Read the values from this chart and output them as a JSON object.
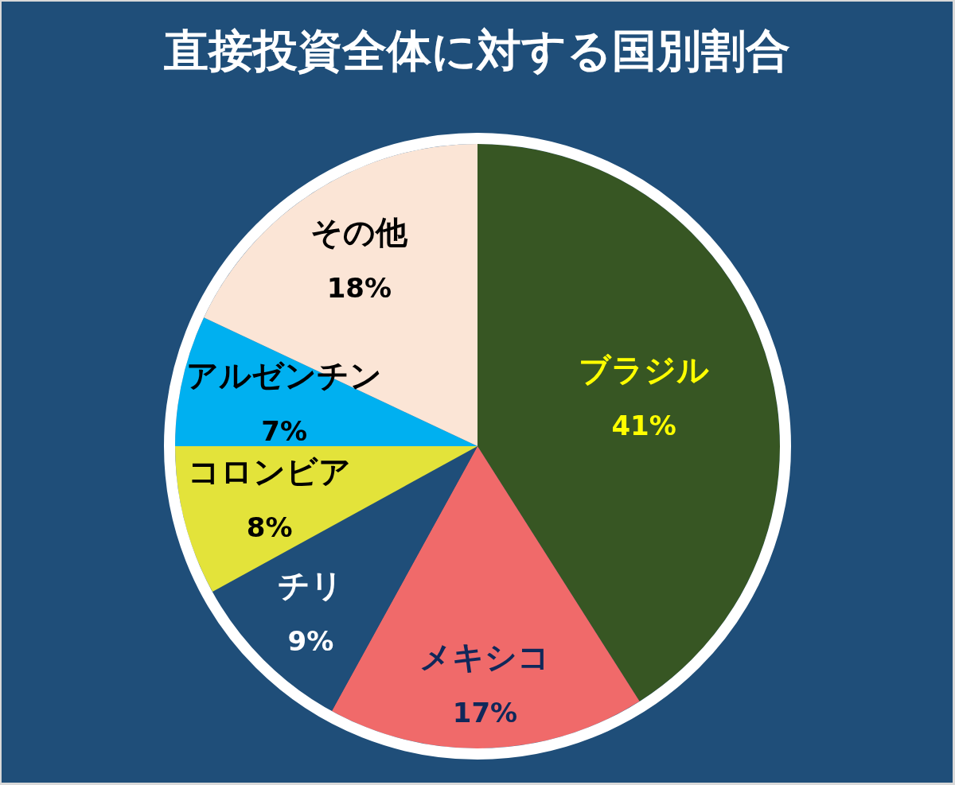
{
  "chart_data": {
    "type": "pie",
    "title": "直接投資全体に対する国別割合",
    "categories": [
      "ブラジル",
      "メキシコ",
      "チリ",
      "コロンビア",
      "アルゼンチン",
      "その他"
    ],
    "values": [
      41,
      17,
      9,
      8,
      7,
      18
    ],
    "colors": [
      "#375623",
      "#f06a6a",
      "#1f4e79",
      "#e3e33a",
      "#00b0f0",
      "#fbe5d6"
    ],
    "value_labels": [
      "41%",
      "17%",
      "9%",
      "8%",
      "7%",
      "18%"
    ],
    "legend": false
  }
}
